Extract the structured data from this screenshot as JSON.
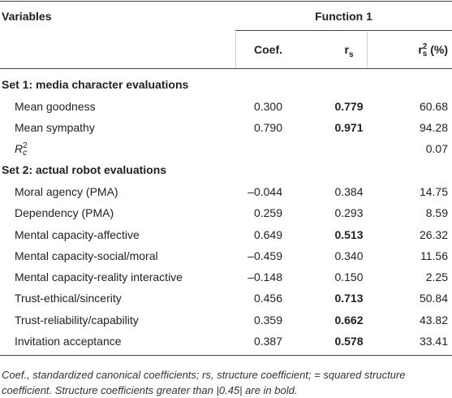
{
  "table": {
    "header": {
      "variables": "Variables",
      "group": "Function 1",
      "columns": [
        {
          "text": "Coef."
        },
        {
          "base": "r",
          "sub": "s"
        },
        {
          "base": "r",
          "sub": "s",
          "sup": "2",
          "suffix": "(%)"
        }
      ]
    },
    "sections": [
      {
        "title": "Set 1: media character evaluations",
        "rows": [
          {
            "label": "Mean goodness",
            "values": [
              "0.300",
              "0.779",
              "60.68"
            ],
            "bold": [
              false,
              true,
              false
            ]
          },
          {
            "label": "Mean sympathy",
            "values": [
              "0.790",
              "0.971",
              "94.28"
            ],
            "bold": [
              false,
              true,
              false
            ]
          },
          {
            "label_base": "R",
            "label_sub": "c",
            "label_sup": "2",
            "values": [
              null,
              null,
              "0.07"
            ],
            "bold": [
              false,
              false,
              false
            ]
          }
        ]
      },
      {
        "title": "Set 2: actual robot evaluations",
        "rows": [
          {
            "label": "Moral agency (PMA)",
            "values": [
              "–0.044",
              "0.384",
              "14.75"
            ],
            "bold": [
              false,
              false,
              false
            ]
          },
          {
            "label": "Dependency (PMA)",
            "values": [
              "0.259",
              "0.293",
              "8.59"
            ],
            "bold": [
              false,
              false,
              false
            ]
          },
          {
            "label": "Mental capacity-affective",
            "values": [
              "0.649",
              "0.513",
              "26.32"
            ],
            "bold": [
              false,
              true,
              false
            ]
          },
          {
            "label": "Mental capacity-social/moral",
            "values": [
              "–0.459",
              "0.340",
              "11.56"
            ],
            "bold": [
              false,
              false,
              false
            ]
          },
          {
            "label": "Mental capacity-reality interactive",
            "values": [
              "–0.148",
              "0.150",
              "2.25"
            ],
            "bold": [
              false,
              false,
              false
            ]
          },
          {
            "label": "Trust-ethical/sincerity",
            "values": [
              "0.456",
              "0.713",
              "50.84"
            ],
            "bold": [
              false,
              true,
              false
            ]
          },
          {
            "label": "Trust-reliability/capability",
            "values": [
              "0.359",
              "0.662",
              "43.82"
            ],
            "bold": [
              false,
              true,
              false
            ]
          },
          {
            "label": "Invitation acceptance",
            "values": [
              "0.387",
              "0.578",
              "33.41"
            ],
            "bold": [
              false,
              true,
              false
            ]
          }
        ]
      }
    ],
    "footnote": [
      "Coef., standardized canonical coefficients; rs, structure coefficient; = squared structure",
      "coefficient. Structure coefficients greater than |0.45| are in bold."
    ]
  }
}
